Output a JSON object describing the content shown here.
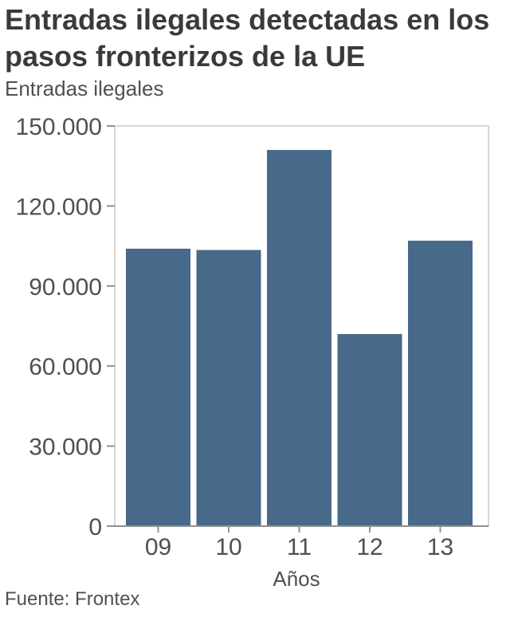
{
  "chart_data": {
    "type": "bar",
    "title": "Entradas ilegales detectadas en los pasos fronterizos de la UE",
    "ylabel": "Entradas ilegales",
    "xlabel": "Años",
    "categories": [
      "09",
      "10",
      "11",
      "12",
      "13"
    ],
    "values": [
      104000,
      103500,
      141000,
      72000,
      107000
    ],
    "ylim": [
      0,
      150000
    ],
    "yticks": [
      0,
      30000,
      60000,
      90000,
      120000,
      150000
    ],
    "ytick_labels": [
      "0",
      "30.000",
      "60.000",
      "90.000",
      "120.000",
      "150.000"
    ],
    "bar_color": "#476a8a",
    "grid": false,
    "source": "Fuente: Frontex"
  }
}
